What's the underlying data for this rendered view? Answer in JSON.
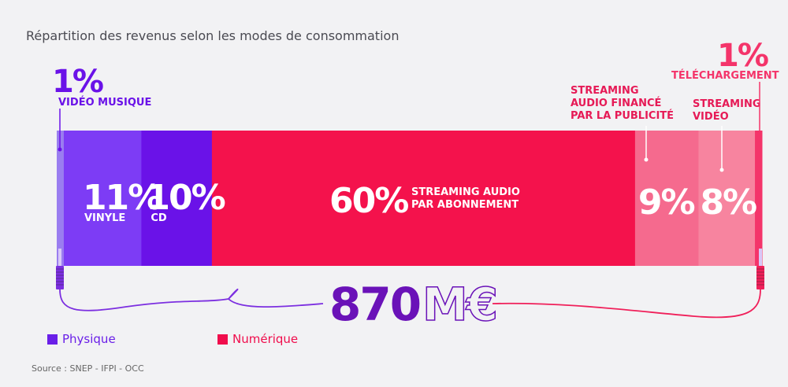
{
  "title": "Répartition des revenus selon les modes de consommation",
  "source": "Source : SNEP - IFPI - OCC",
  "total": {
    "value": "870",
    "unit": "M€"
  },
  "legend": [
    {
      "label": "Physique",
      "color": "#6a1fe8"
    },
    {
      "label": "Numérique",
      "color": "#f00d4c"
    }
  ],
  "colors": {
    "video_musique": "#9a7df0",
    "vinyle": "#7d3cf5",
    "cd": "#6a12e8",
    "streaming_abonnement": "#f4124c",
    "streaming_pub": "#f56a8e",
    "streaming_video": "#f7849f",
    "telechargement": "#f4346a"
  },
  "chart_data": {
    "type": "bar",
    "stacked": true,
    "orientation": "horizontal",
    "title": "Répartition des revenus selon les modes de consommation",
    "total_label": "870 M€",
    "segments": [
      {
        "pct_label": "1%",
        "name": "VIDÉO MUSIQUE",
        "value": 1,
        "group": "Physique"
      },
      {
        "pct_label": "11%",
        "name": "VINYLE",
        "value": 11,
        "group": "Physique"
      },
      {
        "pct_label": "10%",
        "name": "CD",
        "value": 10,
        "group": "Physique"
      },
      {
        "pct_label": "60%",
        "name": "STREAMING AUDIO PAR ABONNEMENT",
        "name_lines": [
          "STREAMING AUDIO",
          "PAR ABONNEMENT"
        ],
        "value": 60,
        "group": "Numérique"
      },
      {
        "pct_label": "9%",
        "name": "STREAMING AUDIO FINANCÉ PAR LA PUBLICITÉ",
        "name_lines": [
          "STREAMING",
          "AUDIO FINANCÉ",
          "PAR LA PUBLICITÉ"
        ],
        "value": 9,
        "group": "Numérique"
      },
      {
        "pct_label": "8%",
        "name": "STREAMING VIDÉO",
        "name_lines": [
          "STREAMING",
          "VIDÉO"
        ],
        "value": 8,
        "group": "Numérique"
      },
      {
        "pct_label": "1%",
        "name": "TÉLÉCHARGEMENT",
        "value": 1,
        "group": "Numérique"
      }
    ]
  }
}
